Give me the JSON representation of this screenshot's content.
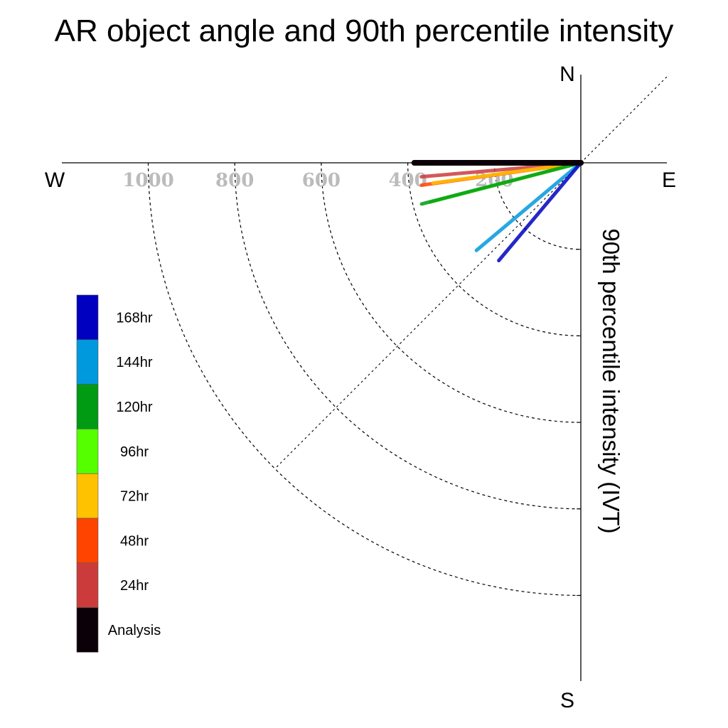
{
  "chart_data": {
    "type": "polar-quadrant-vectors",
    "title": "AR object angle and 90th percentile intensity",
    "radial_axis_label": "90th percentile intensity (IVT)",
    "radial_ticks": [
      200,
      400,
      600,
      800,
      1000
    ],
    "radial_tick_labels": [
      "200",
      "400",
      "600",
      "800",
      "1000"
    ],
    "radial_max": 1000,
    "compass_labels": {
      "north": "N",
      "east": "E",
      "south": "S",
      "west": "W"
    },
    "angle_convention": "degrees below west (0 = west, 90 = south)",
    "series": [
      {
        "name": "Analysis",
        "angle_deg": 0.0,
        "intensity": 385,
        "color": "#0b0008"
      },
      {
        "name": "24hr",
        "angle_deg": 5.0,
        "intensity": 370,
        "color": "#cc3b3b"
      },
      {
        "name": "48hr",
        "angle_deg": 8.0,
        "intensity": 372,
        "color": "#ff4400"
      },
      {
        "name": "72hr",
        "angle_deg": 7.8,
        "intensity": 345,
        "color": "#ffc200"
      },
      {
        "name": "96hr",
        "angle_deg": 14.6,
        "intensity": 360,
        "color": "#55ff00"
      },
      {
        "name": "120hr",
        "angle_deg": 14.5,
        "intensity": 380,
        "color": "#009a13"
      },
      {
        "name": "144hr",
        "angle_deg": 40.0,
        "intensity": 315,
        "color": "#0099dd"
      },
      {
        "name": "168hr",
        "angle_deg": 50.0,
        "intensity": 295,
        "color": "#0000c0"
      }
    ],
    "legend": {
      "placement": "bottom-left",
      "entries": [
        "168hr",
        "144hr",
        "120hr",
        "96hr",
        "72hr",
        "48hr",
        "24hr",
        "Analysis"
      ],
      "colors": [
        "#0000c0",
        "#0099dd",
        "#009a13",
        "#55ff00",
        "#ffc200",
        "#ff4400",
        "#cc3b3b",
        "#0b0008"
      ]
    }
  }
}
